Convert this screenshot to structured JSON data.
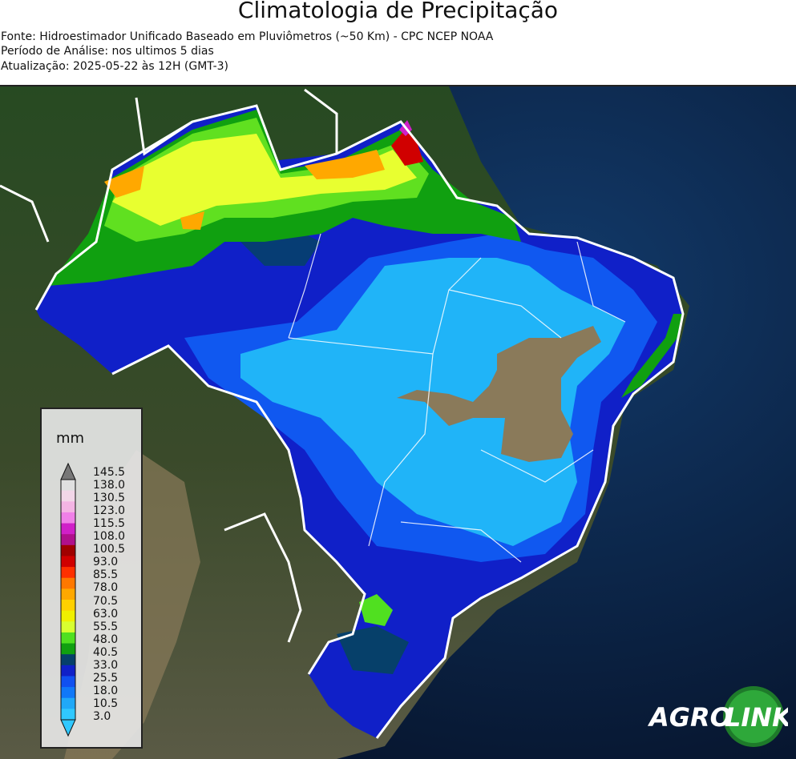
{
  "header": {
    "title": "Climatologia de Precipitação",
    "source": "Fonte: Hidroestimador Unificado Baseado em Pluviômetros (~50 Km) - CPC NCEP NOAA",
    "period": "Período de Análise: nos ultimos 5 dias",
    "updated": "Atualização: 2025-05-22 às 12H (GMT-3)"
  },
  "legend": {
    "unit": "mm",
    "ticks": [
      "145.5",
      "138.0",
      "130.5",
      "123.0",
      "115.5",
      "108.0",
      "100.5",
      "93.0",
      "85.5",
      "78.0",
      "70.5",
      "63.0",
      "55.5",
      "48.0",
      "40.5",
      "33.0",
      "25.5",
      "18.0",
      "10.5",
      "3.0"
    ],
    "colors": [
      "#e0e0e0",
      "#f2d6e8",
      "#f4b4e4",
      "#f080e8",
      "#d020c8",
      "#b0108c",
      "#a00000",
      "#d00000",
      "#ff3000",
      "#ff7800",
      "#ffa800",
      "#ffd000",
      "#f0f000",
      "#d8ff30",
      "#50e020",
      "#10a010",
      "#06406a",
      "#1020c8",
      "#1050f0",
      "#1078f8",
      "#20a8f8",
      "#30c8ff"
    ],
    "top_triangle_color": "#777777"
  },
  "logo": {
    "text_left": "AGRO",
    "text_right": "LINK"
  }
}
